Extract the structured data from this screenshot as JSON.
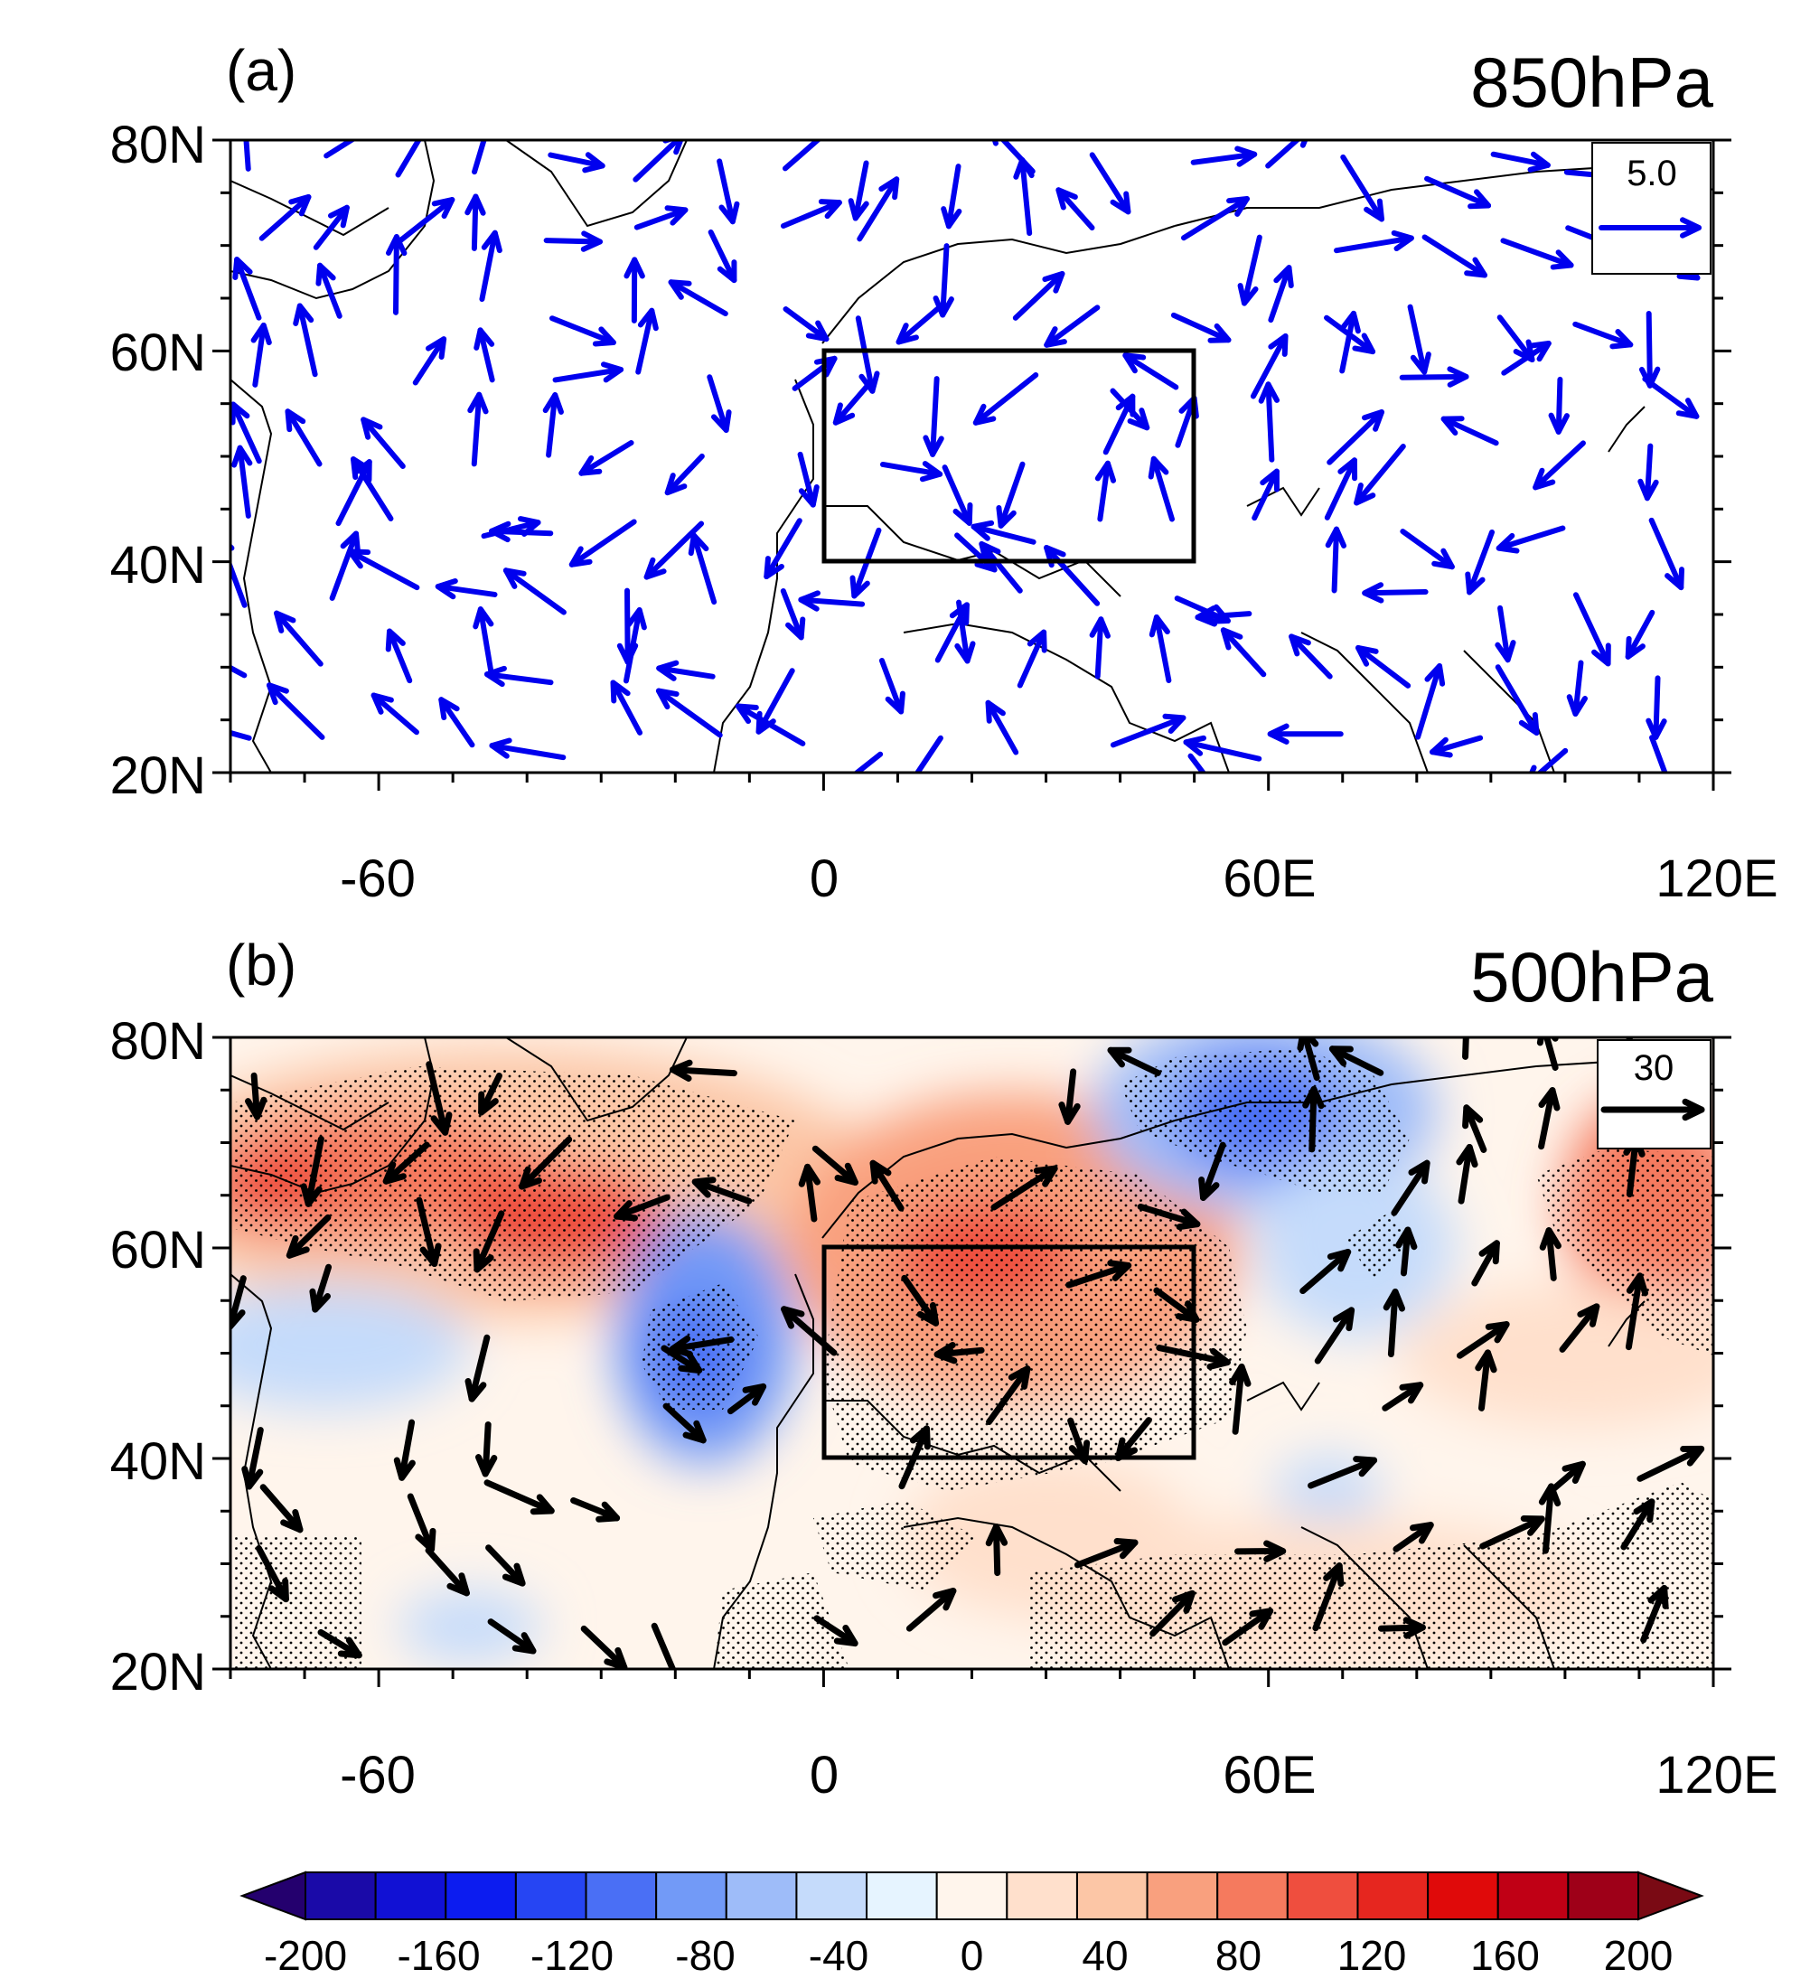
{
  "panels": [
    {
      "letter": "(a)",
      "level": "850hPa",
      "ref_vector_label": "5.0",
      "vector_color": "#0000ee",
      "shaded": false,
      "y_ticks": [
        "80N",
        "60N",
        "40N",
        "20N"
      ],
      "x_ticks": [
        "-60",
        "0",
        "60E",
        "120E"
      ],
      "box": {
        "lon": [
          0,
          50
        ],
        "lat": [
          40,
          60
        ]
      }
    },
    {
      "letter": "(b)",
      "level": "500hPa",
      "ref_vector_label": "30",
      "vector_color": "#000000",
      "shaded": true,
      "y_ticks": [
        "80N",
        "60N",
        "40N",
        "20N"
      ],
      "x_ticks": [
        "-60",
        "0",
        "60E",
        "120E"
      ],
      "box": {
        "lon": [
          0,
          50
        ],
        "lat": [
          40,
          60
        ]
      }
    }
  ],
  "colorbar": {
    "ticks": [
      "-200",
      "-160",
      "-120",
      "-80",
      "-40",
      "0",
      "40",
      "80",
      "120",
      "160",
      "200"
    ],
    "colors": [
      "#24006e",
      "#1a0aa8",
      "#1111d4",
      "#0c1cf0",
      "#2645f3",
      "#4a6ff5",
      "#729af7",
      "#9ebcf9",
      "#c5dbfb",
      "#e6f4ff",
      "#fff5ec",
      "#ffe0cc",
      "#fcc6a6",
      "#f9a07e",
      "#f57a5e",
      "#ef4e3e",
      "#e6261f",
      "#e00a0a",
      "#c00015",
      "#9e0018",
      "#7a0a14"
    ]
  }
}
